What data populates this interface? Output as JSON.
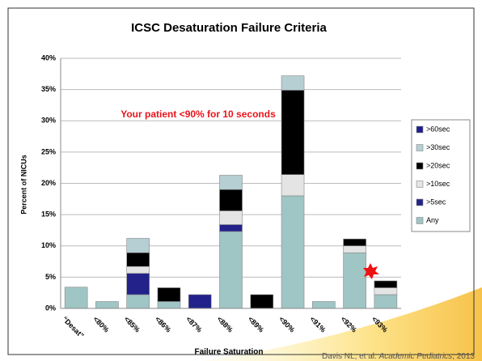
{
  "chart_data": {
    "type": "stacked_bar",
    "title": "ICSC Desaturation Failure Criteria",
    "xlabel": "Failure Saturation",
    "ylabel": "Percent of NICUs",
    "annotation": "Your patient <90% for 10 seconds",
    "citation_authors": "Davis NL, et al. ",
    "citation_journal": "Academic Pediatrics",
    "citation_year": ", 2013",
    "categories": [
      "“Desat”",
      "<80%",
      "<85%",
      "<86%",
      "<87%",
      "<88%",
      "<89%",
      "<90%",
      "<91%",
      "<92%",
      "<93%"
    ],
    "series": [
      {
        "name": "Any",
        "color": "#9fc5c5",
        "values": [
          3.4,
          1.1,
          2.2,
          1.1,
          0,
          12.3,
          0,
          18.0,
          1.1,
          8.9,
          2.2
        ]
      },
      {
        "name": ">5sec",
        "color": "#22228a",
        "values": [
          0,
          0,
          3.4,
          0,
          2.2,
          1.1,
          0,
          0,
          0,
          0,
          0
        ]
      },
      {
        "name": ">10sec",
        "color": "#e4e4e4",
        "values": [
          0,
          0,
          1.1,
          0,
          0,
          2.2,
          0,
          3.4,
          0,
          1.1,
          1.1
        ]
      },
      {
        "name": ">20sec",
        "color": "#000000",
        "values": [
          0,
          0,
          2.2,
          2.2,
          0,
          3.4,
          2.2,
          13.5,
          0,
          1.1,
          1.1
        ]
      },
      {
        "name": ">30sec",
        "color": "#b5cfd3",
        "values": [
          0,
          0,
          2.3,
          0,
          0,
          2.3,
          0,
          2.3,
          0,
          0,
          0
        ]
      },
      {
        "name": ">60sec",
        "color": "#1f1f8c",
        "values": [
          0,
          0,
          0,
          0,
          0,
          0,
          0,
          0,
          0,
          0,
          0
        ]
      }
    ],
    "ylim": [
      0,
      40
    ],
    "yticks": [
      {
        "value": 0,
        "label": "0%"
      },
      {
        "value": 5,
        "label": "5%"
      },
      {
        "value": 10,
        "label": "10%"
      },
      {
        "value": 15,
        "label": "15%"
      },
      {
        "value": 20,
        "label": "20%"
      },
      {
        "value": 25,
        "label": "25%"
      },
      {
        "value": 30,
        "label": "30%"
      },
      {
        "value": 35,
        "label": "35%"
      },
      {
        "value": 40,
        "label": "40%"
      }
    ],
    "grid": true
  }
}
